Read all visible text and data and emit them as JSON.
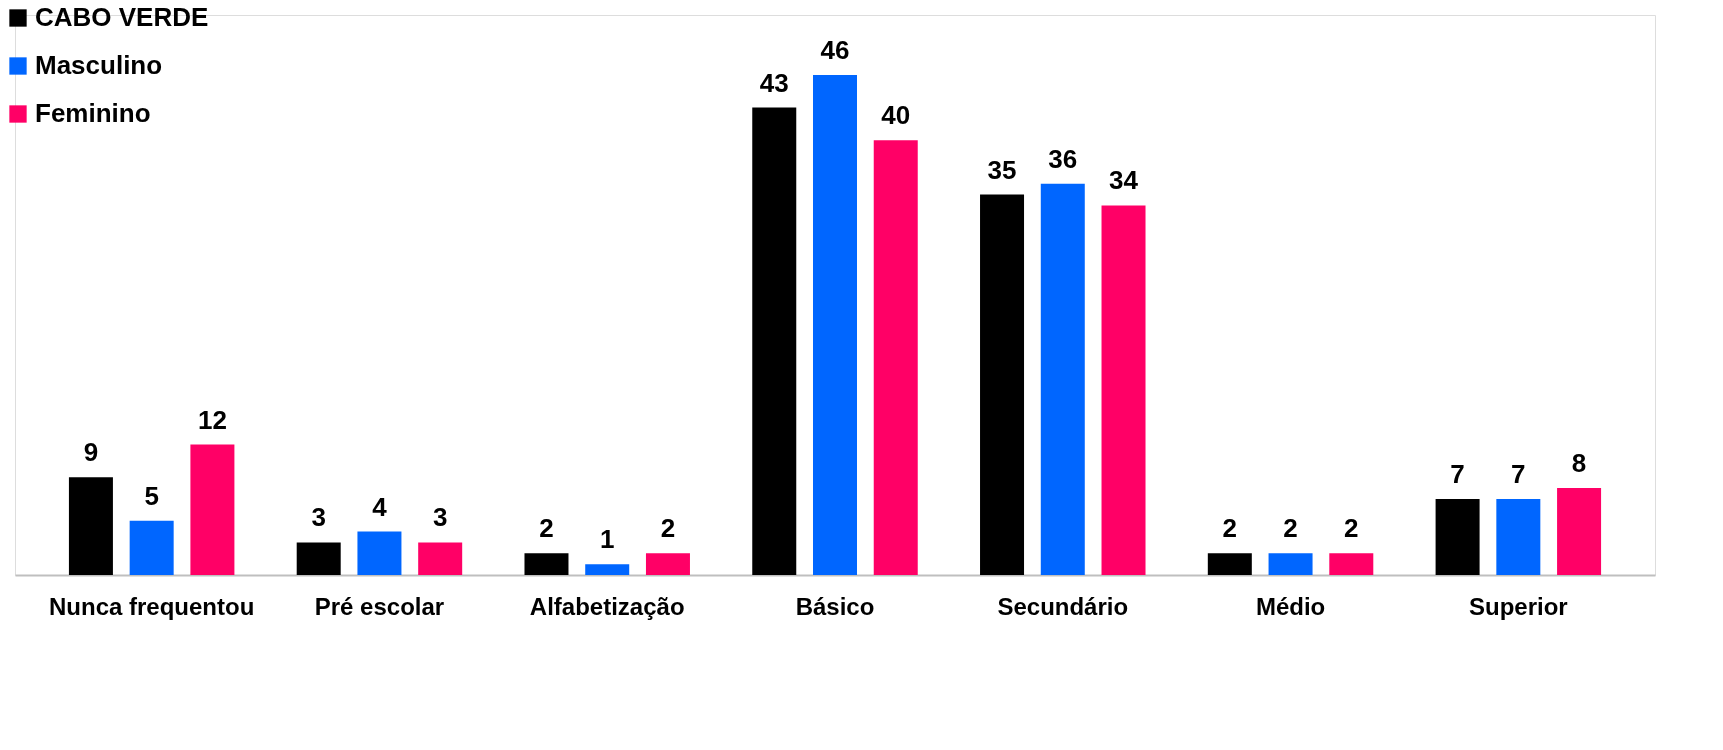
{
  "chart_data": {
    "type": "bar",
    "categories": [
      "Nunca frequentou",
      "Pré escolar",
      "Alfabetização",
      "Básico",
      "Secundário",
      "Médio",
      "Superior"
    ],
    "series": [
      {
        "name": "CABO VERDE",
        "color": "#000000",
        "values": [
          9,
          3,
          2,
          43,
          35,
          2,
          7
        ]
      },
      {
        "name": "Masculino",
        "color": "#0066ff",
        "values": [
          5,
          4,
          1,
          46,
          36,
          2,
          7
        ]
      },
      {
        "name": "Feminino",
        "color": "#ff0066",
        "values": [
          12,
          3,
          2,
          40,
          34,
          2,
          8
        ]
      }
    ],
    "data_labels": true,
    "legend": "top left",
    "grid": false
  }
}
